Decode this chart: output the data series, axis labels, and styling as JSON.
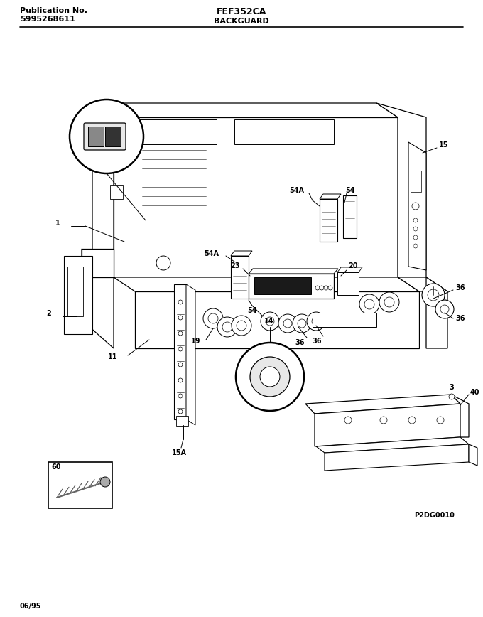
{
  "title_left_line1": "Publication No.",
  "title_left_line2": "5995268611",
  "title_center": "FEF352CA",
  "subtitle_center": "BACKGUARD",
  "footer_left": "06/95",
  "footer_right": "P2DG0010",
  "bg_color": "#ffffff",
  "line_color": "#000000",
  "text_color": "#000000",
  "fig_width": 6.8,
  "fig_height": 8.68,
  "dpi": 100
}
